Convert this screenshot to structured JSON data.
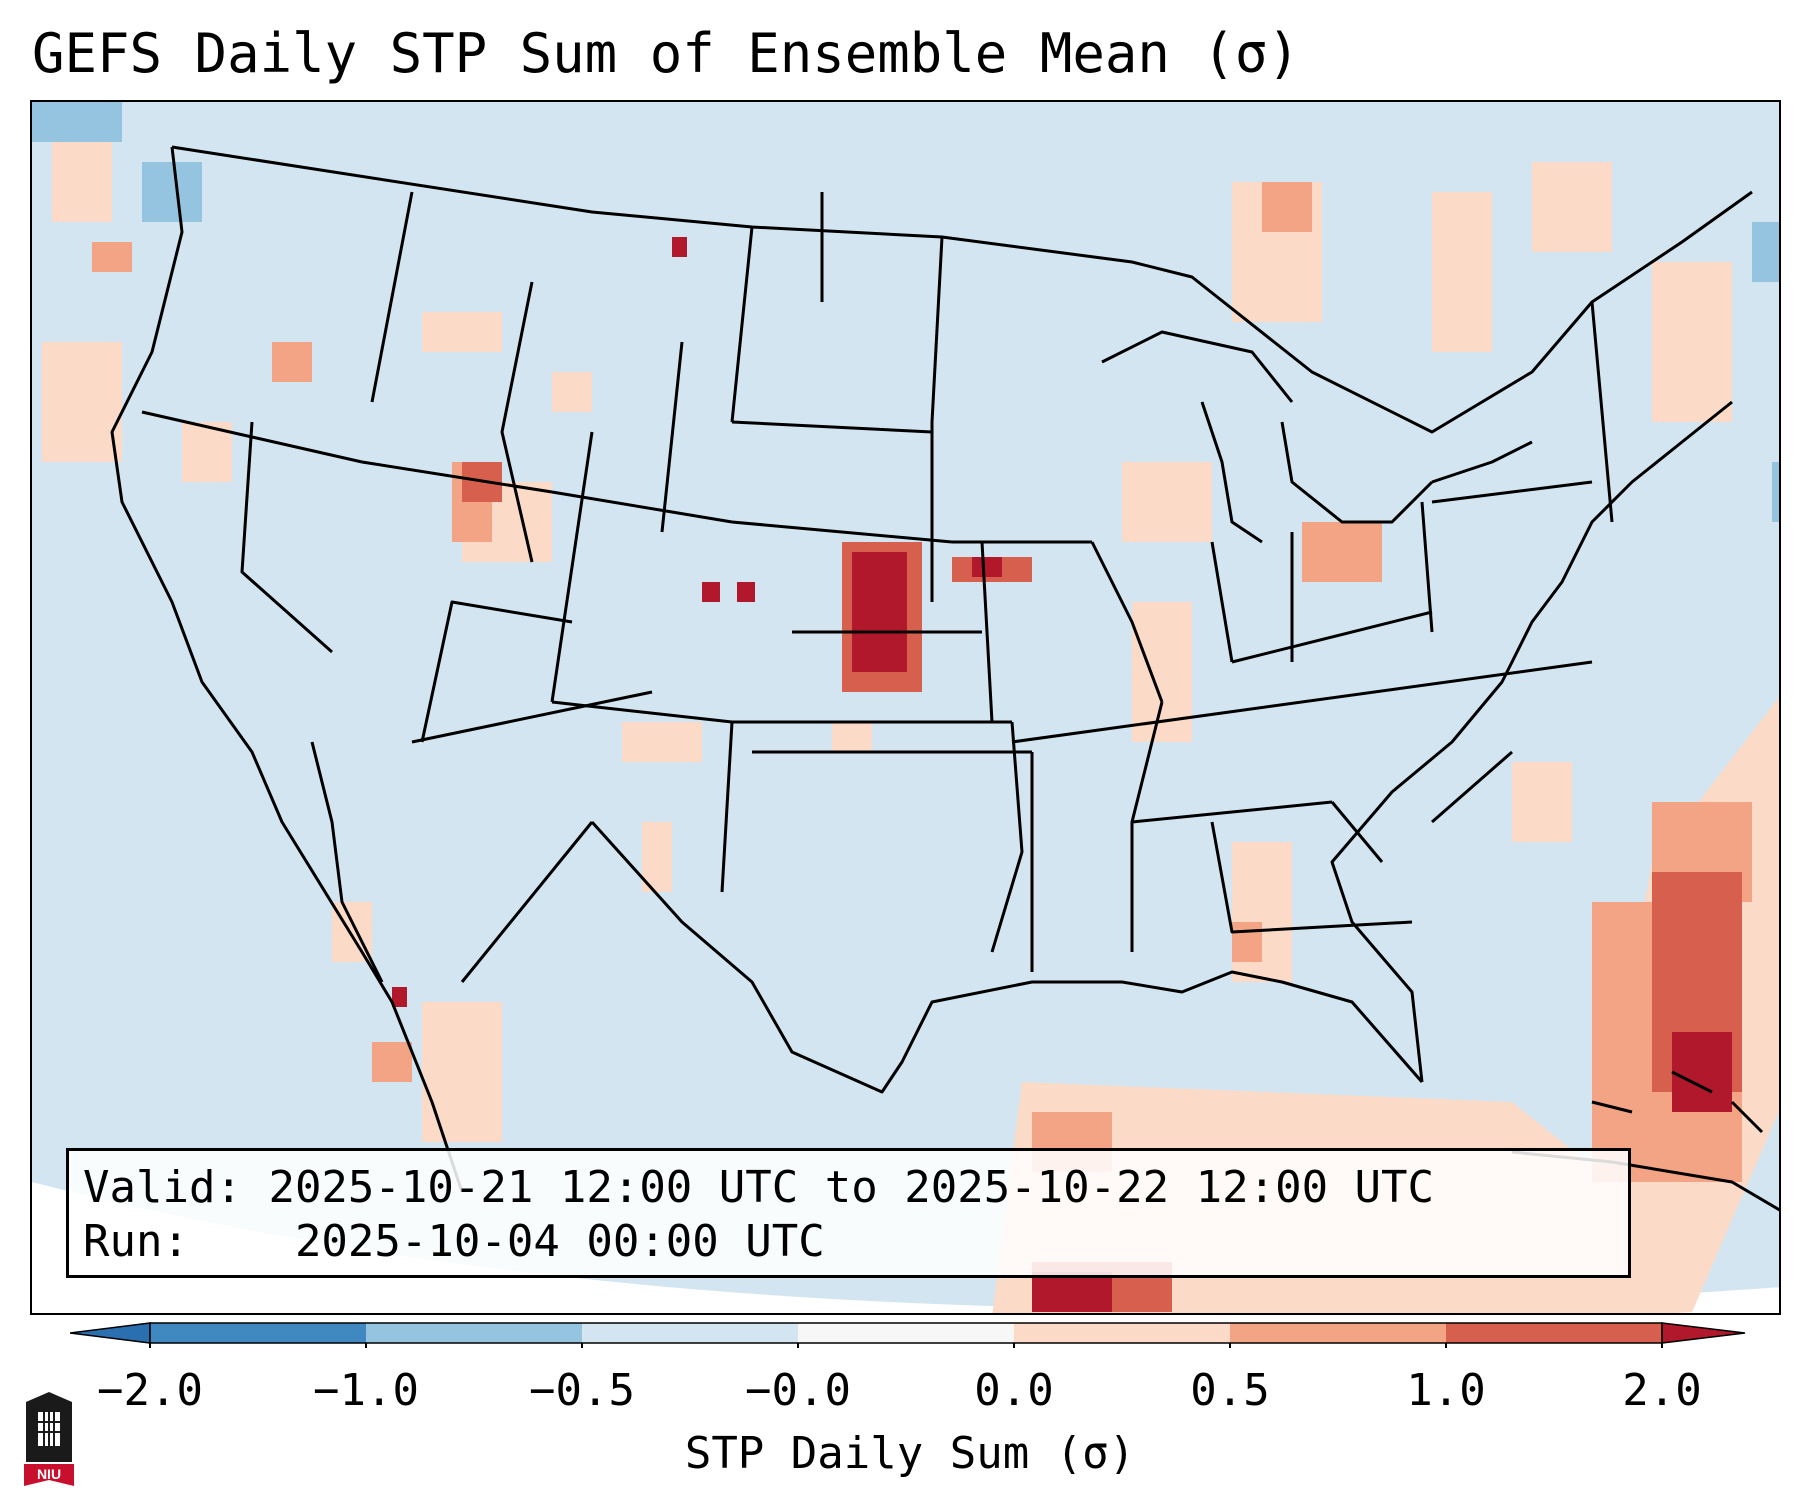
{
  "title": "GEFS Daily STP Sum of Ensemble Mean (σ)",
  "info": {
    "valid_label": "Valid:",
    "valid_value": "2025-10-21 12:00 UTC to 2025-10-22 12:00 UTC",
    "run_label": "Run:",
    "run_value": "2025-10-04 00:00 UTC"
  },
  "colorbar": {
    "label": "STP Daily Sum (σ)",
    "ticks": [
      "−2.0",
      "−1.0",
      "−0.5",
      "−0.0",
      "0.0",
      "0.5",
      "1.0",
      "2.0"
    ],
    "bins": [
      {
        "range": "-2.0 to -1.0",
        "color": "#3f88c0"
      },
      {
        "range": "-1.0 to -0.5",
        "color": "#94c4df"
      },
      {
        "range": "-0.5 to -0.0",
        "color": "#d2e5f0"
      },
      {
        "range": "-0.0 to 0.0",
        "color": "#f7f7f7"
      },
      {
        "range": "0.0 to 0.5",
        "color": "#fbdbc8"
      },
      {
        "range": "0.5 to 1.0",
        "color": "#f2a484"
      },
      {
        "range": "1.0 to 2.0",
        "color": "#d6604d"
      }
    ],
    "under_color": "#2a6fb0",
    "over_color": "#b2182b"
  },
  "map_colors": {
    "background_field": "#d2e5f0",
    "outside_domain": "#ffffff",
    "borders": "#000000"
  },
  "logo": {
    "text": "NIU",
    "color": "#c8102e"
  }
}
